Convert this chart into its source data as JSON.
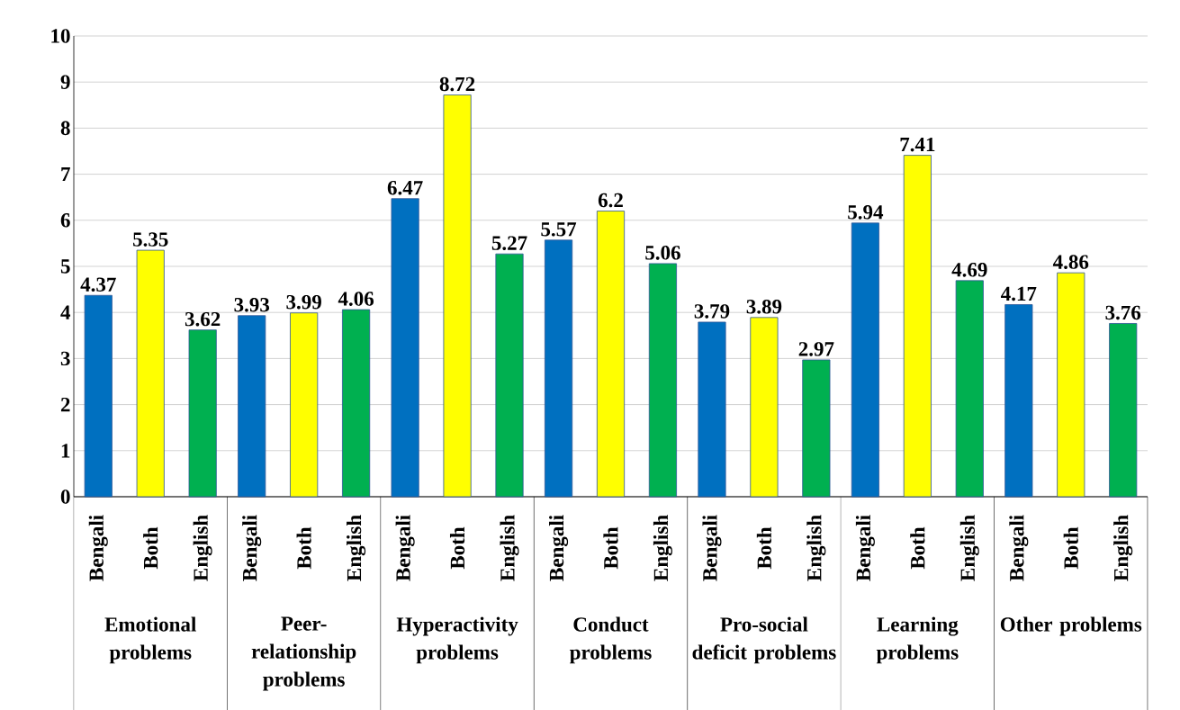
{
  "chart_data": {
    "type": "bar",
    "categories": [
      "Emotional problems",
      "Peer-relationship problems",
      "Hyperactivity problems",
      "Conduct problems",
      "Pro-social deficit problems",
      "Learning problems",
      "Other problems"
    ],
    "series": [
      {
        "name": "Bengali",
        "color": "#0070c0",
        "values": [
          4.37,
          3.93,
          6.47,
          5.57,
          3.79,
          5.94,
          4.17
        ]
      },
      {
        "name": "Both",
        "color": "#ffff00",
        "values": [
          5.35,
          3.99,
          8.72,
          6.2,
          3.89,
          7.41,
          4.86
        ]
      },
      {
        "name": "English",
        "color": "#00b050",
        "values": [
          3.62,
          4.06,
          5.27,
          5.06,
          2.97,
          4.69,
          3.76
        ]
      }
    ],
    "ylim": [
      0,
      10
    ],
    "yticks": [
      0,
      1,
      2,
      3,
      4,
      5,
      6,
      7,
      8,
      9,
      10
    ],
    "grid": "y",
    "data_labels": true
  }
}
